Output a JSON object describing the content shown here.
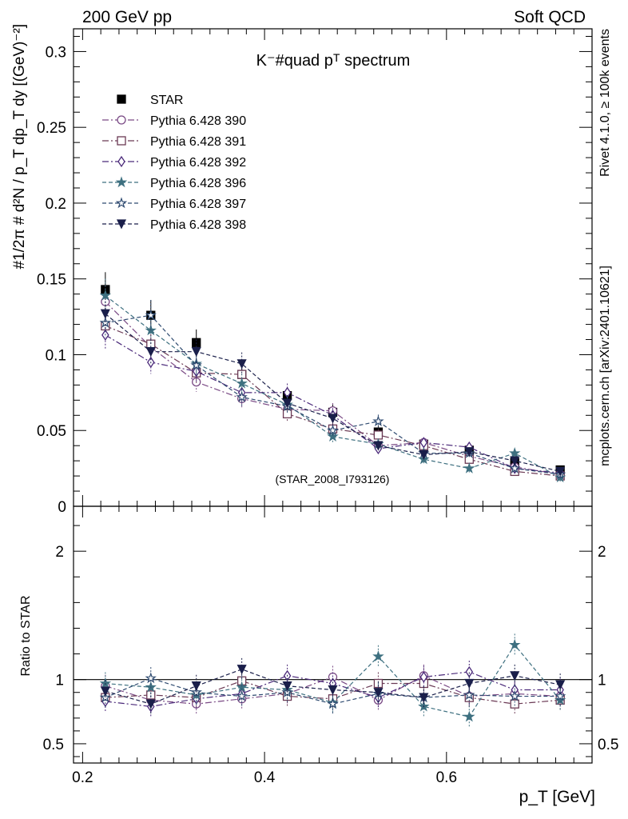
{
  "header": {
    "left": "200 GeV pp",
    "right": "Soft QCD",
    "side_top": "Rivet 4.1.0, ≥ 100k events",
    "side_bottom": "mcplots.cern.ch [arXiv:2401.10621]"
  },
  "chart_data": {
    "type": "scatter",
    "title": "K⁻#quad pᵀ spectrum",
    "xlabel": "p_T [GeV]",
    "ylabel": "#1/2π # d²N / p_T dp_T dy [(GeV)⁻²]",
    "ratio_ylabel": "Ratio to STAR",
    "watermark": "(STAR_2008_I793126)",
    "xlim": [
      0.19,
      0.76
    ],
    "ylim": [
      0,
      0.315
    ],
    "ratio_ylim": [
      0.35,
      2.35
    ],
    "x_ticks": [
      0.2,
      0.4,
      0.6
    ],
    "x_tick_labels": [
      "0.2",
      "0.4",
      "0.6"
    ],
    "y_ticks": [
      0,
      0.05,
      0.1,
      0.15,
      0.2,
      0.25,
      0.3
    ],
    "y_tick_labels": [
      "0",
      "0.05",
      "0.1",
      "0.15",
      "0.2",
      "0.25",
      "0.3"
    ],
    "ratio_ticks": [
      0.5,
      1,
      2
    ],
    "ratio_tick_labels": [
      "0.5",
      "1",
      "2"
    ],
    "x": [
      0.225,
      0.275,
      0.325,
      0.375,
      0.425,
      0.475,
      0.525,
      0.575,
      0.625,
      0.675,
      0.725
    ],
    "series": [
      {
        "name": "STAR",
        "color": "#000000",
        "marker": "square-filled",
        "dash": "none",
        "values": [
          0.143,
          0.126,
          0.108,
          0.087,
          0.073,
          0.062,
          0.049,
          0.041,
          0.037,
          0.029,
          0.024
        ]
      },
      {
        "name": "Pythia 6.428 390",
        "color": "#7a4a85",
        "marker": "circle-open",
        "dash": "8,3,2,3",
        "values": [
          0.135,
          0.105,
          0.082,
          0.071,
          0.064,
          0.063,
          0.04,
          0.042,
          0.033,
          0.026,
          0.021
        ]
      },
      {
        "name": "Pythia 6.428 391",
        "color": "#6b3a55",
        "marker": "square-open",
        "dash": "8,3,2,3",
        "values": [
          0.119,
          0.107,
          0.088,
          0.087,
          0.061,
          0.051,
          0.047,
          0.04,
          0.031,
          0.023,
          0.02
        ]
      },
      {
        "name": "Pythia 6.428 392",
        "color": "#4b2a7a",
        "marker": "diamond-open",
        "dash": "8,3,2,3",
        "values": [
          0.113,
          0.095,
          0.089,
          0.075,
          0.075,
          0.06,
          0.038,
          0.042,
          0.039,
          0.025,
          0.022
        ]
      },
      {
        "name": "Pythia 6.428 396",
        "color": "#3e7080",
        "marker": "star-filled",
        "dash": "5,3",
        "values": [
          0.139,
          0.116,
          0.094,
          0.081,
          0.067,
          0.046,
          0.041,
          0.031,
          0.025,
          0.035,
          0.019
        ]
      },
      {
        "name": "Pythia 6.428 397",
        "color": "#2e4a70",
        "marker": "star-open",
        "dash": "5,3",
        "values": [
          0.121,
          0.126,
          0.093,
          0.072,
          0.066,
          0.05,
          0.056,
          0.035,
          0.035,
          0.025,
          0.021
        ]
      },
      {
        "name": "Pythia 6.428 398",
        "color": "#1a1f4a",
        "marker": "triangle-down-filled",
        "dash": "5,3",
        "values": [
          0.127,
          0.102,
          0.102,
          0.094,
          0.068,
          0.058,
          0.04,
          0.034,
          0.036,
          0.03,
          0.023
        ]
      }
    ],
    "ratio_series": [
      {
        "name": "Pythia 6.428 390",
        "values": [
          0.95,
          0.84,
          0.81,
          0.85,
          0.89,
          1.02,
          0.84,
          1.03,
          0.87,
          0.89,
          0.87
        ]
      },
      {
        "name": "Pythia 6.428 391",
        "values": [
          0.86,
          0.88,
          0.86,
          0.99,
          0.87,
          0.85,
          0.97,
          0.97,
          0.86,
          0.81,
          0.84
        ]
      },
      {
        "name": "Pythia 6.428 392",
        "values": [
          0.83,
          0.79,
          0.85,
          0.89,
          1.03,
          0.97,
          0.86,
          1.02,
          1.06,
          0.92,
          0.92
        ]
      },
      {
        "name": "Pythia 6.428 396",
        "values": [
          0.97,
          0.94,
          0.88,
          0.94,
          0.92,
          0.82,
          1.18,
          0.79,
          0.71,
          1.27,
          0.84
        ]
      },
      {
        "name": "Pythia 6.428 397",
        "values": [
          0.86,
          1.01,
          0.9,
          0.87,
          0.9,
          0.81,
          0.89,
          0.86,
          0.88,
          0.87,
          0.87
        ]
      },
      {
        "name": "Pythia 6.428 398",
        "values": [
          0.91,
          0.81,
          0.95,
          1.08,
          0.95,
          0.92,
          0.9,
          0.86,
          0.97,
          1.03,
          0.96
        ]
      }
    ]
  }
}
